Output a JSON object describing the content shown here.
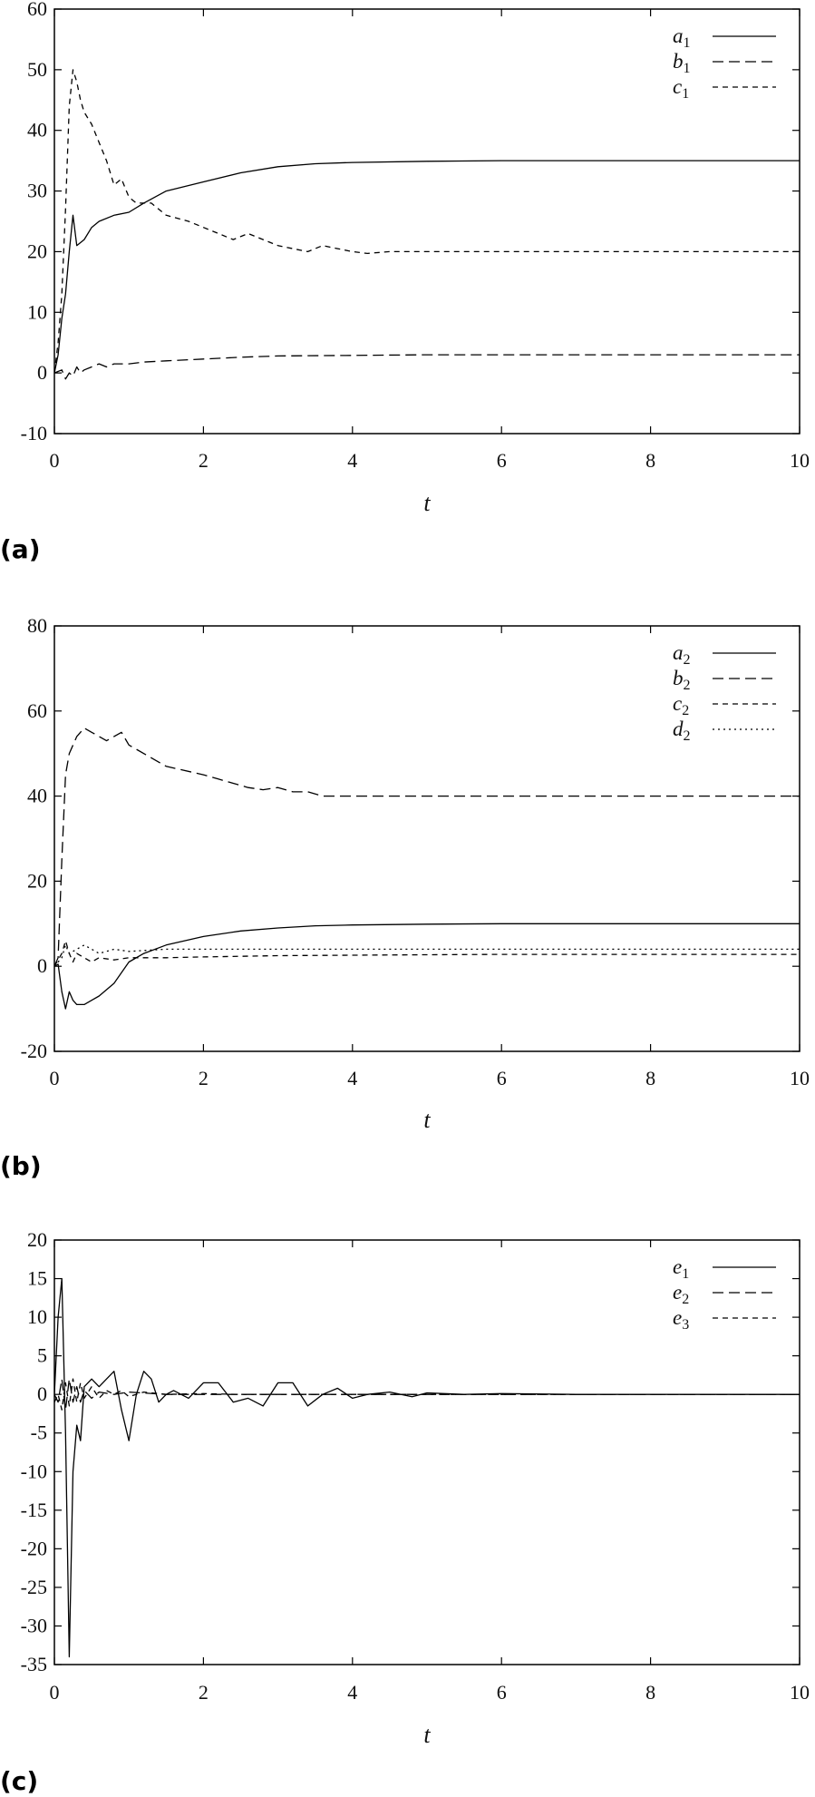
{
  "chart_data": [
    {
      "panel_label": "(a)",
      "type": "line",
      "xlabel": "t",
      "xlim": [
        0,
        10
      ],
      "ylim": [
        -10,
        60
      ],
      "xticks": [
        0,
        2,
        4,
        6,
        8,
        10
      ],
      "yticks": [
        -10,
        0,
        10,
        20,
        30,
        40,
        50,
        60
      ],
      "legend_position": "top-right",
      "series": [
        {
          "name": "a",
          "sub": "1",
          "style": "solid",
          "x": [
            0,
            0.05,
            0.1,
            0.15,
            0.2,
            0.25,
            0.3,
            0.4,
            0.5,
            0.6,
            0.8,
            1.0,
            1.2,
            1.5,
            2.0,
            2.5,
            3.0,
            3.5,
            4.0,
            5.0,
            6.0,
            7.0,
            8.0,
            9.0,
            10.0
          ],
          "y": [
            0,
            3,
            9,
            13,
            20,
            26,
            21,
            22,
            24,
            25,
            26,
            26.5,
            28,
            30,
            31.5,
            33,
            34,
            34.5,
            34.7,
            34.9,
            35,
            35,
            35,
            35,
            35
          ]
        },
        {
          "name": "b",
          "sub": "1",
          "style": "dashed",
          "x": [
            0,
            0.1,
            0.15,
            0.2,
            0.25,
            0.3,
            0.35,
            0.4,
            0.5,
            0.6,
            0.7,
            0.8,
            1.0,
            1.2,
            1.5,
            2.0,
            2.5,
            3.0,
            4.0,
            5.0,
            6.0,
            7.0,
            8.0,
            9.0,
            10.0
          ],
          "y": [
            0,
            0.5,
            -1,
            0,
            -0.5,
            1,
            0,
            0.5,
            1,
            1.5,
            1,
            1.5,
            1.5,
            1.8,
            2,
            2.3,
            2.6,
            2.8,
            2.9,
            3,
            3,
            3,
            3,
            3,
            3
          ]
        },
        {
          "name": "c",
          "sub": "1",
          "style": "short-dashed",
          "x": [
            0,
            0.05,
            0.1,
            0.15,
            0.2,
            0.25,
            0.3,
            0.35,
            0.4,
            0.5,
            0.6,
            0.7,
            0.8,
            0.9,
            1.0,
            1.1,
            1.3,
            1.5,
            1.8,
            2.0,
            2.2,
            2.4,
            2.6,
            2.8,
            3.0,
            3.2,
            3.4,
            3.6,
            3.8,
            4.0,
            4.2,
            4.5,
            5.0,
            5.5,
            6.0,
            7.0,
            8.0,
            9.0,
            10.0
          ],
          "y": [
            0,
            5,
            13,
            27,
            44,
            50,
            48,
            45,
            43,
            41,
            38,
            35,
            31,
            32,
            29,
            28,
            28,
            26,
            25,
            24,
            23,
            22,
            23,
            22,
            21,
            20.5,
            20,
            21,
            20.5,
            20,
            19.7,
            20,
            20,
            20,
            20,
            20,
            20,
            20,
            20
          ]
        }
      ]
    },
    {
      "panel_label": "(b)",
      "type": "line",
      "xlabel": "t",
      "xlim": [
        0,
        10
      ],
      "ylim": [
        -20,
        80
      ],
      "xticks": [
        0,
        2,
        4,
        6,
        8,
        10
      ],
      "yticks": [
        -20,
        0,
        20,
        40,
        60,
        80
      ],
      "legend_position": "top-right",
      "series": [
        {
          "name": "a",
          "sub": "2",
          "style": "solid",
          "x": [
            0,
            0.05,
            0.1,
            0.15,
            0.2,
            0.25,
            0.3,
            0.4,
            0.5,
            0.6,
            0.8,
            1.0,
            1.2,
            1.5,
            2.0,
            2.5,
            3.0,
            3.5,
            4.0,
            5.0,
            6.0,
            7.0,
            8.0,
            9.0,
            10.0
          ],
          "y": [
            0,
            0.5,
            -6,
            -10,
            -6,
            -8,
            -9,
            -9,
            -8,
            -7,
            -4,
            1,
            3,
            5,
            7,
            8.3,
            9,
            9.5,
            9.7,
            9.9,
            10,
            10,
            10,
            10,
            10
          ]
        },
        {
          "name": "b",
          "sub": "2",
          "style": "dashed",
          "x": [
            0,
            0.05,
            0.1,
            0.15,
            0.2,
            0.3,
            0.4,
            0.5,
            0.6,
            0.7,
            0.8,
            0.9,
            1.0,
            1.2,
            1.5,
            2.0,
            2.2,
            2.4,
            2.6,
            2.8,
            3.0,
            3.2,
            3.4,
            3.6,
            3.8,
            4.0,
            4.5,
            5.0,
            5.5,
            6.0,
            7.0,
            8.0,
            9.0,
            10.0
          ],
          "y": [
            0,
            2,
            25,
            45,
            50,
            54,
            56,
            55,
            54,
            53,
            54,
            55,
            52,
            50,
            47,
            45,
            44,
            43,
            42,
            41.5,
            42,
            41,
            41,
            40,
            40,
            40,
            40,
            40,
            40,
            40,
            40,
            40,
            40,
            40
          ]
        },
        {
          "name": "c",
          "sub": "2",
          "style": "short-dashed",
          "x": [
            0,
            0.1,
            0.15,
            0.2,
            0.25,
            0.3,
            0.4,
            0.5,
            0.6,
            0.8,
            1.0,
            1.5,
            2.0,
            3.0,
            4.0,
            5.0,
            6.0,
            7.0,
            8.0,
            9.0,
            10.0
          ],
          "y": [
            0,
            3,
            6,
            3,
            1,
            3,
            2,
            1,
            2,
            1.5,
            2,
            2,
            2.2,
            2.5,
            2.6,
            2.7,
            2.8,
            2.8,
            2.8,
            2.8,
            2.8
          ]
        },
        {
          "name": "d",
          "sub": "2",
          "style": "dotted",
          "x": [
            0,
            0.1,
            0.15,
            0.2,
            0.3,
            0.4,
            0.5,
            0.6,
            0.8,
            1.0,
            1.5,
            2.0,
            3.0,
            4.0,
            5.0,
            6.0,
            7.0,
            8.0,
            9.0,
            10.0
          ],
          "y": [
            0,
            2,
            5,
            3,
            4,
            5,
            4,
            3,
            4,
            3.5,
            4,
            4,
            4,
            4,
            4,
            4,
            4,
            4,
            4,
            4
          ]
        }
      ]
    },
    {
      "panel_label": "(c)",
      "type": "line",
      "xlabel": "t",
      "xlim": [
        0,
        10
      ],
      "ylim": [
        -35,
        20
      ],
      "xticks": [
        0,
        2,
        4,
        6,
        8,
        10
      ],
      "yticks": [
        -35,
        -30,
        -25,
        -20,
        -15,
        -10,
        -5,
        0,
        5,
        10,
        15,
        20
      ],
      "legend_position": "top-right",
      "series": [
        {
          "name": "e",
          "sub": "1",
          "style": "solid",
          "x": [
            0,
            0.05,
            0.1,
            0.15,
            0.2,
            0.25,
            0.3,
            0.35,
            0.4,
            0.5,
            0.6,
            0.7,
            0.8,
            0.9,
            1.0,
            1.1,
            1.2,
            1.3,
            1.4,
            1.5,
            1.6,
            1.8,
            2.0,
            2.2,
            2.4,
            2.6,
            2.8,
            3.0,
            3.2,
            3.4,
            3.6,
            3.8,
            4.0,
            4.2,
            4.5,
            4.8,
            5.0,
            5.5,
            6.0,
            7.0,
            8.0,
            9.0,
            10.0
          ],
          "y": [
            0,
            10,
            15,
            -5,
            -34,
            -10,
            -4,
            -6,
            1,
            2,
            1,
            2,
            3,
            -2,
            -6,
            0,
            3,
            2,
            -1,
            0,
            0.5,
            -0.5,
            1.5,
            1.5,
            -1,
            -0.5,
            -1.5,
            1.5,
            1.5,
            -1.5,
            0,
            0.8,
            -0.5,
            0,
            0.3,
            -0.3,
            0.2,
            0,
            0.1,
            0,
            0,
            0,
            0
          ]
        },
        {
          "name": "e",
          "sub": "2",
          "style": "dashed",
          "x": [
            0,
            0.05,
            0.1,
            0.15,
            0.2,
            0.25,
            0.3,
            0.35,
            0.4,
            0.5,
            0.6,
            0.8,
            1.0,
            1.5,
            2.0,
            3.0,
            4.0,
            5.0,
            6.0,
            8.0,
            10.0
          ],
          "y": [
            0,
            -1,
            2,
            -2,
            2,
            -1,
            1,
            -1,
            0.5,
            -0.5,
            0.3,
            0,
            0.3,
            0,
            0,
            0,
            0,
            0,
            0,
            0,
            0
          ]
        },
        {
          "name": "e",
          "sub": "3",
          "style": "short-dashed",
          "x": [
            0,
            0.05,
            0.1,
            0.15,
            0.2,
            0.25,
            0.3,
            0.35,
            0.4,
            0.5,
            0.6,
            0.7,
            0.8,
            0.9,
            1.0,
            1.2,
            1.5,
            2.0,
            2.5,
            3.0,
            4.0,
            5.0,
            6.0,
            8.0,
            10.0
          ],
          "y": [
            -1,
            0,
            -2,
            1.5,
            -1.5,
            2,
            -1,
            1.5,
            -0.5,
            1,
            -0.5,
            0.5,
            0,
            0.5,
            -0.3,
            0.3,
            0,
            0.1,
            0,
            0,
            0,
            0,
            0,
            0,
            0
          ]
        }
      ]
    }
  ]
}
